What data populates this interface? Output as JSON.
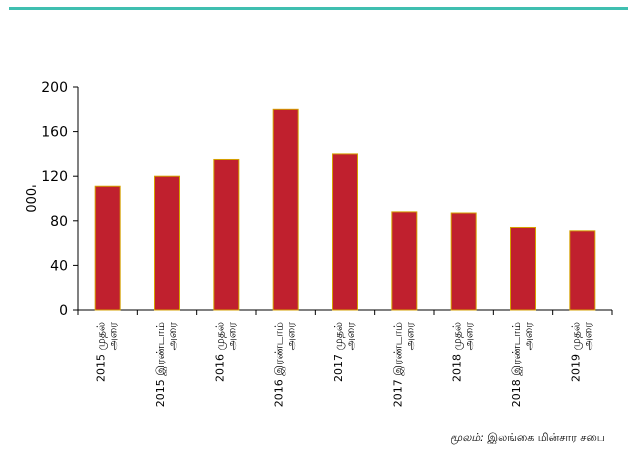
{
  "chart_data": {
    "type": "bar",
    "categories": [
      "2015 முதல் அரை",
      "2015 இரண்டாம் அரை",
      "2016 முதல் அரை",
      "2016 இரண்டாம் அரை",
      "2017 முதல் அரை",
      "2017 இரண்டாம் அரை",
      "2018 முதல் அரை",
      "2018 இரண்டாம் அரை",
      "2019 முதல் அரை"
    ],
    "values": [
      111,
      120,
      135,
      180,
      140,
      88,
      87,
      74,
      71
    ],
    "ylabel": "'000",
    "ylim": [
      0,
      200
    ],
    "yticks": [
      0,
      40,
      80,
      120,
      160,
      200
    ],
    "bar_color": "#c0202e",
    "bar_edge_color": "#d4a100",
    "grid": false,
    "legend": "none"
  },
  "accent_color": "#3fbfb0",
  "source": {
    "label": "மூலம்:",
    "text": "இலங்கை மின்சார சபை"
  }
}
